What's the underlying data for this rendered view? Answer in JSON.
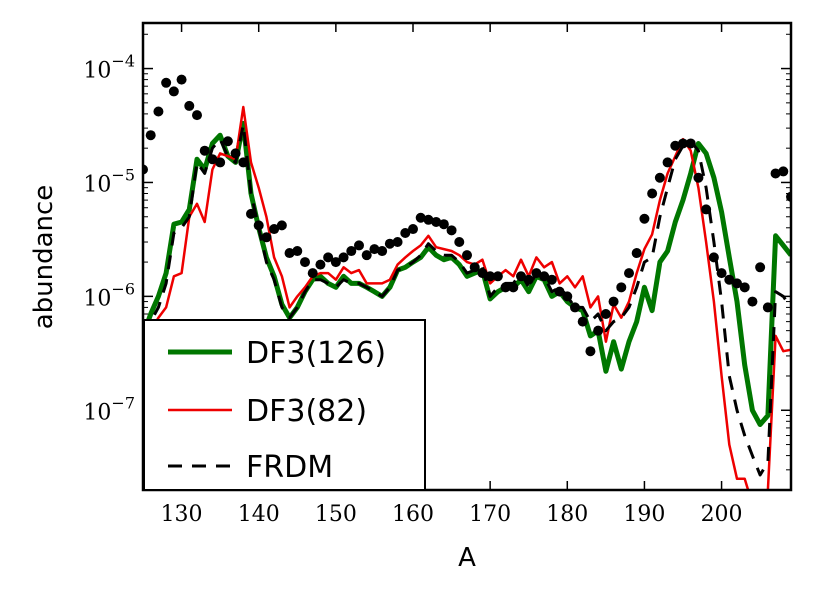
{
  "chart_data": {
    "type": "line",
    "xlabel": "A",
    "ylabel": "abundance",
    "xlim": [
      125,
      209
    ],
    "ylim_log10": [
      -7.7,
      -3.6
    ],
    "x_scale": "linear",
    "y_scale": "log",
    "grid": false,
    "legend_placement": "lower-left",
    "x_ticks": [
      130,
      140,
      150,
      160,
      170,
      180,
      190,
      200
    ],
    "x_tick_labels": [
      "130",
      "140",
      "150",
      "160",
      "170",
      "180",
      "190",
      "200"
    ],
    "y_ticks_exp": [
      -7,
      -6,
      -5,
      -4
    ],
    "y_tick_base": "10",
    "y_tick_labels": [
      "−7",
      "−6",
      "−5",
      "−4"
    ],
    "series": [
      {
        "name": "DF3(126)",
        "style": "solid",
        "color": "#007700",
        "width": 5,
        "x": [
          125,
          126,
          127,
          128,
          129,
          130,
          131,
          132,
          133,
          134,
          135,
          136,
          137,
          138,
          139,
          140,
          141,
          142,
          143,
          144,
          145,
          146,
          147,
          148,
          149,
          150,
          151,
          152,
          153,
          154,
          155,
          156,
          157,
          158,
          159,
          160,
          161,
          162,
          163,
          164,
          165,
          166,
          167,
          168,
          169,
          170,
          171,
          172,
          173,
          174,
          175,
          176,
          177,
          178,
          179,
          180,
          181,
          182,
          183,
          184,
          185,
          186,
          187,
          188,
          189,
          190,
          191,
          192,
          193,
          194,
          195,
          196,
          197,
          198,
          199,
          200,
          201,
          202,
          203,
          204,
          205,
          206,
          207,
          208,
          209
        ],
        "y": [
          4.5e-07,
          7e-07,
          1e-06,
          1.6e-06,
          4.3e-06,
          4.5e-06,
          5.8e-06,
          1.6e-05,
          1.3e-05,
          2.2e-05,
          2.6e-05,
          1.7e-05,
          1.5e-05,
          3.3e-05,
          8e-06,
          4e-06,
          2.2e-06,
          1.5e-06,
          8.5e-07,
          6.5e-07,
          8e-07,
          1.1e-06,
          1.4e-06,
          1.5e-06,
          1.3e-06,
          1.2e-06,
          1.5e-06,
          1.3e-06,
          1.3e-06,
          1.2e-06,
          1.1e-06,
          1e-06,
          1.2e-06,
          1.7e-06,
          1.8e-06,
          2e-06,
          2.2e-06,
          2.7e-06,
          2.3e-06,
          2.1e-06,
          2.2e-06,
          1.9e-06,
          1.5e-06,
          1.6e-06,
          1.7e-06,
          9.5e-07,
          1.1e-06,
          1.2e-06,
          1.2e-06,
          1.4e-06,
          1.1e-06,
          1.5e-06,
          1.4e-06,
          1e-06,
          1.1e-06,
          9e-07,
          8e-07,
          7.5e-07,
          4.5e-07,
          5e-07,
          2.2e-07,
          4e-07,
          2.3e-07,
          4e-07,
          6e-07,
          1.2e-06,
          7.5e-07,
          2e-06,
          2.5e-06,
          4.5e-06,
          7e-06,
          1.2e-05,
          2.2e-05,
          1.8e-05,
          1.1e-05,
          5.5e-06,
          2.2e-06,
          9e-07,
          2.5e-07,
          1e-07,
          7.5e-08,
          9e-08,
          3.4e-06,
          2.8e-06,
          2.3e-06
        ]
      },
      {
        "name": "DF3(82)",
        "style": "solid",
        "color": "#ee0000",
        "width": 2.5,
        "x": [
          125,
          126,
          127,
          128,
          129,
          130,
          131,
          132,
          133,
          134,
          135,
          136,
          137,
          138,
          139,
          140,
          141,
          142,
          143,
          144,
          145,
          146,
          147,
          148,
          149,
          150,
          151,
          152,
          153,
          154,
          155,
          156,
          157,
          158,
          159,
          160,
          161,
          162,
          163,
          164,
          165,
          166,
          167,
          168,
          169,
          170,
          171,
          172,
          173,
          174,
          175,
          176,
          177,
          178,
          179,
          180,
          181,
          182,
          183,
          184,
          185,
          186,
          187,
          188,
          189,
          190,
          191,
          192,
          193,
          194,
          195,
          196,
          197,
          198,
          199,
          200,
          201,
          202,
          203,
          204,
          205,
          206,
          207,
          208,
          209
        ],
        "y": [
          4.5e-07,
          5e-07,
          6.5e-07,
          8e-07,
          1.5e-06,
          1.6e-06,
          5e-06,
          6.5e-06,
          4.5e-06,
          1.3e-05,
          1.8e-05,
          1.7e-05,
          1.6e-05,
          4.6e-05,
          1.5e-05,
          9e-06,
          5e-06,
          2.2e-06,
          1.5e-06,
          8e-07,
          1e-06,
          1.2e-06,
          1.5e-06,
          1.6e-06,
          1.6e-06,
          1.4e-06,
          1.8e-06,
          1.6e-06,
          1.7e-06,
          1.3e-06,
          1.3e-06,
          1.3e-06,
          1.4e-06,
          1.9e-06,
          2.2e-06,
          2.5e-06,
          2.8e-06,
          3.4e-06,
          2.7e-06,
          2.6e-06,
          2.5e-06,
          2.3e-06,
          2e-06,
          1.9e-06,
          2.1e-06,
          1.3e-06,
          1.5e-06,
          1.7e-06,
          1.5e-06,
          2.1e-06,
          1.5e-06,
          2.2e-06,
          1.8e-06,
          2e-06,
          1.3e-06,
          1.5e-06,
          1.2e-06,
          1.5e-06,
          8e-07,
          1e-06,
          4e-07,
          8.5e-07,
          6.5e-07,
          9e-07,
          1.6e-06,
          2.6e-06,
          3.5e-06,
          7e-06,
          1.2e-05,
          1.7e-05,
          2.4e-05,
          1.9e-05,
          9e-06,
          3e-06,
          9e-07,
          2e-07,
          5e-08,
          2.5e-08,
          2.5e-08,
          1.5e-08,
          1.5e-08,
          2e-08,
          4.5e-07,
          3.3e-07,
          3.4e-07
        ]
      },
      {
        "name": "FRDM",
        "style": "dashed",
        "color": "#000000",
        "width": 3,
        "x": [
          125,
          126,
          127,
          128,
          129,
          130,
          131,
          132,
          133,
          134,
          135,
          136,
          137,
          138,
          139,
          140,
          141,
          142,
          143,
          144,
          145,
          146,
          147,
          148,
          149,
          150,
          151,
          152,
          153,
          154,
          155,
          156,
          157,
          158,
          159,
          160,
          161,
          162,
          163,
          164,
          165,
          166,
          167,
          168,
          169,
          170,
          171,
          172,
          173,
          174,
          175,
          176,
          177,
          178,
          179,
          180,
          181,
          182,
          183,
          184,
          185,
          186,
          187,
          188,
          189,
          190,
          191,
          192,
          193,
          194,
          195,
          196,
          197,
          198,
          199,
          200,
          201,
          202,
          203,
          204,
          205,
          206,
          207,
          208,
          209
        ],
        "y": [
          4.5e-07,
          6e-07,
          8e-07,
          1.3e-06,
          3.6e-06,
          4e-06,
          5e-06,
          1.5e-05,
          1.2e-05,
          2e-05,
          2.4e-05,
          1.7e-05,
          1.5e-05,
          3.2e-05,
          8e-06,
          4e-06,
          2e-06,
          1.4e-06,
          8e-07,
          6.5e-07,
          8e-07,
          1.1e-06,
          1.4e-06,
          1.4e-06,
          1.3e-06,
          1.2e-06,
          1.4e-06,
          1.3e-06,
          1.3e-06,
          1.2e-06,
          1.1e-06,
          1e-06,
          1.2e-06,
          1.7e-06,
          1.8e-06,
          2e-06,
          2.3e-06,
          2.9e-06,
          2.5e-06,
          2.3e-06,
          2.3e-06,
          2e-06,
          1.6e-06,
          1.7e-06,
          1.8e-06,
          1e-06,
          1.2e-06,
          1.3e-06,
          1.3e-06,
          1.6e-06,
          1.2e-06,
          1.6e-06,
          1.5e-06,
          1.1e-06,
          1.2e-06,
          1e-06,
          8e-07,
          8e-07,
          6e-07,
          7e-07,
          5e-07,
          6e-07,
          6.5e-07,
          8e-07,
          1.2e-06,
          2e-06,
          2.2e-06,
          5e-06,
          9e-06,
          1.6e-05,
          2.1e-05,
          2.3e-05,
          1.9e-05,
          9e-06,
          3e-06,
          9e-07,
          2e-07,
          1e-07,
          6e-08,
          4e-08,
          2.7e-08,
          3.5e-08,
          1.1e-06,
          1e-06,
          8e-07
        ]
      },
      {
        "name": "",
        "style": "points",
        "color": "#000000",
        "x": [
          125,
          126,
          127,
          128,
          129,
          130,
          131,
          132,
          133,
          134,
          135,
          136,
          137,
          138,
          139,
          140,
          141,
          142,
          143,
          144,
          145,
          146,
          147,
          148,
          149,
          150,
          151,
          152,
          153,
          154,
          155,
          156,
          157,
          158,
          159,
          160,
          161,
          162,
          163,
          164,
          165,
          166,
          167,
          168,
          169,
          170,
          171,
          172,
          173,
          174,
          175,
          176,
          177,
          178,
          179,
          180,
          181,
          182,
          183,
          184,
          185,
          186,
          187,
          188,
          189,
          190,
          191,
          192,
          193,
          194,
          195,
          196,
          197,
          198,
          199,
          200,
          201,
          202,
          203,
          204,
          205,
          206,
          207,
          208,
          209
        ],
        "y": [
          1.3e-05,
          2.6e-05,
          4.2e-05,
          7.5e-05,
          6.3e-05,
          8e-05,
          4.7e-05,
          3.9e-05,
          1.9e-05,
          1.6e-05,
          1.5e-05,
          2.3e-05,
          1.8e-05,
          1.5e-05,
          5.3e-06,
          4.2e-06,
          3.3e-06,
          3.9e-06,
          4.2e-06,
          2.4e-06,
          2.5e-06,
          2e-06,
          1.6e-06,
          1.9e-06,
          2.2e-06,
          2e-06,
          2.2e-06,
          2.5e-06,
          2.8e-06,
          2.3e-06,
          2.6e-06,
          2.5e-06,
          2.9e-06,
          3e-06,
          3.6e-06,
          3.9e-06,
          4.9e-06,
          4.7e-06,
          4.5e-06,
          4.3e-06,
          3.8e-06,
          3e-06,
          2.3e-06,
          1.8e-06,
          1.6e-06,
          1.5e-06,
          1.5e-06,
          1.2e-06,
          1.2e-06,
          1.5e-06,
          1.4e-06,
          1.6e-06,
          1.5e-06,
          1.4e-06,
          1.1e-06,
          1e-06,
          8e-07,
          6e-07,
          3.3e-07,
          5e-07,
          7e-07,
          9e-07,
          1.2e-06,
          1.6e-06,
          2.4e-06,
          4.8e-06,
          8e-06,
          1.1e-05,
          1.5e-05,
          2.1e-05,
          2.2e-05,
          2.2e-05,
          1.1e-05,
          5.8e-06,
          2.2e-06,
          1.6e-06,
          1.4e-06,
          1.3e-06,
          1.2e-06,
          9e-07,
          1.8e-06,
          8e-07,
          1.2e-05,
          1.25e-05,
          7.5e-06
        ]
      }
    ]
  }
}
